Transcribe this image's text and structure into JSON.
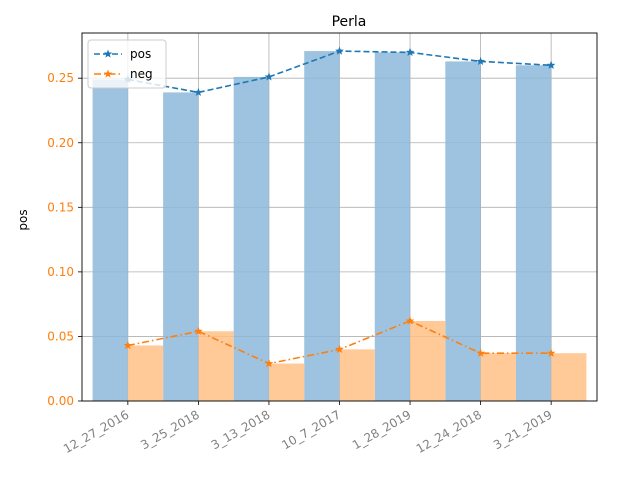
{
  "chart_data": {
    "type": "bar",
    "title": "Perla",
    "xlabel": "",
    "ylabel": "pos",
    "categories": [
      "12_27_2016",
      "3_25_2018",
      "3_13_2018",
      "10_7_2017",
      "1_28_2019",
      "12_24_2018",
      "3_21_2019"
    ],
    "ylim": [
      0,
      0.285
    ],
    "yticks": [
      "0.00",
      "0.05",
      "0.10",
      "0.15",
      "0.20",
      "0.25"
    ],
    "grid": true,
    "legend_position": "top-left",
    "series": [
      {
        "name": "pos",
        "values": [
          0.249,
          0.239,
          0.251,
          0.271,
          0.27,
          0.263,
          0.26
        ],
        "color": "#1f77b4",
        "bar_color": "#8cb8da",
        "line_style": "dashed",
        "marker": "star"
      },
      {
        "name": "neg",
        "values": [
          0.043,
          0.054,
          0.029,
          0.04,
          0.062,
          0.037,
          0.037
        ],
        "color": "#ff7f0e",
        "bar_color": "#ffbf86",
        "line_style": "dashdot",
        "marker": "star"
      }
    ],
    "ytick_color": "#ff7f0e",
    "xtick_color": "#808080"
  }
}
